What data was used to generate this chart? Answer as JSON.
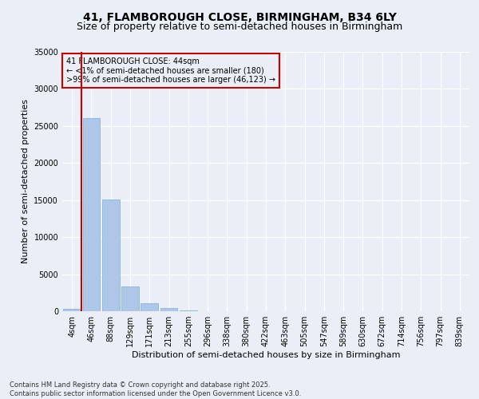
{
  "title_line1": "41, FLAMBOROUGH CLOSE, BIRMINGHAM, B34 6LY",
  "title_line2": "Size of property relative to semi-detached houses in Birmingham",
  "xlabel": "Distribution of semi-detached houses by size in Birmingham",
  "ylabel": "Number of semi-detached properties",
  "categories": [
    "4sqm",
    "46sqm",
    "88sqm",
    "129sqm",
    "171sqm",
    "213sqm",
    "255sqm",
    "296sqm",
    "338sqm",
    "380sqm",
    "422sqm",
    "463sqm",
    "505sqm",
    "547sqm",
    "589sqm",
    "630sqm",
    "672sqm",
    "714sqm",
    "756sqm",
    "797sqm",
    "839sqm"
  ],
  "values": [
    350,
    26100,
    15100,
    3300,
    1050,
    450,
    120,
    30,
    5,
    2,
    1,
    0,
    0,
    0,
    0,
    0,
    0,
    0,
    0,
    0,
    0
  ],
  "bar_color": "#aec6e8",
  "bar_edge_color": "#7aaed4",
  "vline_color": "#cc0000",
  "annotation_title": "41 FLAMBOROUGH CLOSE: 44sqm",
  "annotation_line2": "← <1% of semi-detached houses are smaller (180)",
  "annotation_line3": ">99% of semi-detached houses are larger (46,123) →",
  "annotation_box_color": "#cc0000",
  "ylim": [
    0,
    35000
  ],
  "yticks": [
    0,
    5000,
    10000,
    15000,
    20000,
    25000,
    30000,
    35000
  ],
  "background_color": "#eaeff7",
  "grid_color": "#ffffff",
  "footer_line1": "Contains HM Land Registry data © Crown copyright and database right 2025.",
  "footer_line2": "Contains public sector information licensed under the Open Government Licence v3.0.",
  "title_fontsize": 10,
  "subtitle_fontsize": 9,
  "axis_label_fontsize": 8,
  "tick_fontsize": 7,
  "annotation_fontsize": 7,
  "footer_fontsize": 6
}
